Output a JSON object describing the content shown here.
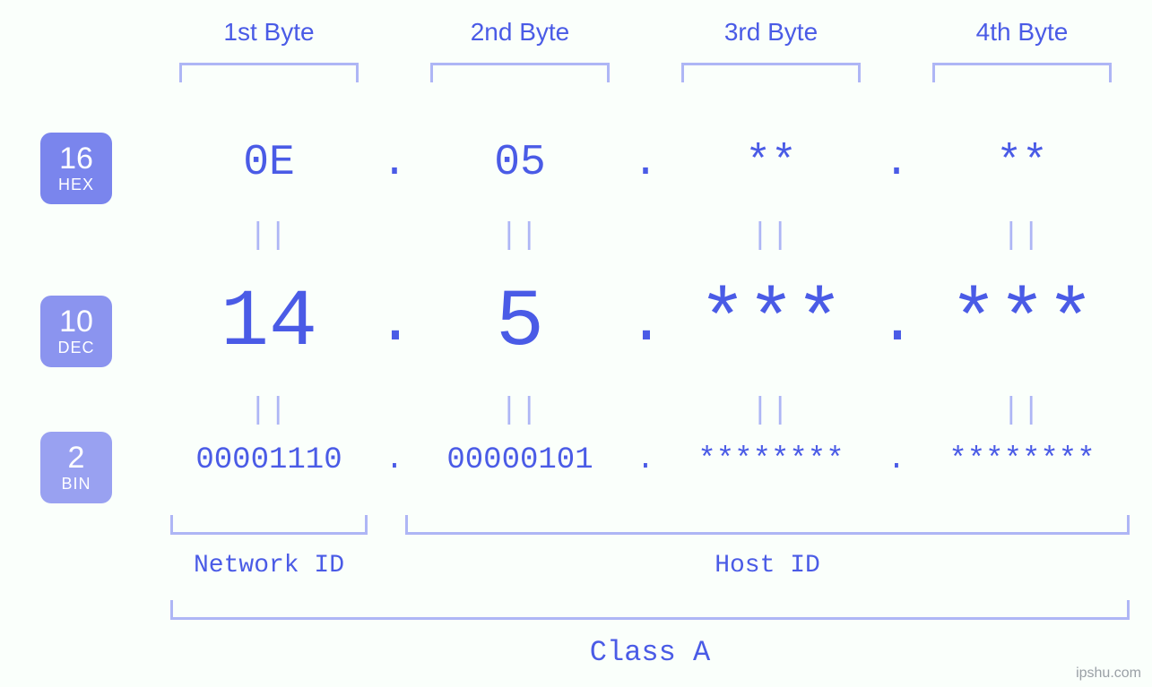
{
  "colors": {
    "background": "#fafffb",
    "primary_text": "#4a5be6",
    "bracket": "#aeb6f5",
    "equals": "#aeb6f5",
    "badge_hex_bg": "#7a85ed",
    "badge_dec_bg": "#8b94ef",
    "badge_bin_bg": "#99a1f1",
    "badge_text": "#ffffff",
    "watermark": "#9aa0a6"
  },
  "typography": {
    "byte_label_fontsize": 28,
    "hex_fontsize": 48,
    "dec_fontsize": 90,
    "bin_fontsize": 34,
    "equals_fontsize": 34,
    "id_label_fontsize": 28,
    "class_label_fontsize": 32,
    "badge_num_fontsize": 34,
    "badge_name_fontsize": 18,
    "font_mono": "Courier New",
    "font_sans": "Arial"
  },
  "byte_headers": [
    "1st Byte",
    "2nd Byte",
    "3rd Byte",
    "4th Byte"
  ],
  "bases": {
    "hex": {
      "num": "16",
      "name": "HEX"
    },
    "dec": {
      "num": "10",
      "name": "DEC"
    },
    "bin": {
      "num": "2",
      "name": "BIN"
    }
  },
  "values": {
    "hex": [
      "0E",
      "05",
      "**",
      "**"
    ],
    "dec": [
      "14",
      "5",
      "***",
      "***"
    ],
    "bin": [
      "00001110",
      "00000101",
      "********",
      "********"
    ]
  },
  "separator": ".",
  "equals_glyph": "||",
  "labels": {
    "network_id": "Network ID",
    "host_id": "Host ID",
    "class": "Class A"
  },
  "watermark": "ipshu.com",
  "structure": {
    "type": "infographic",
    "description": "IPv4 address byte breakdown in hex/dec/bin with network/host/class brackets",
    "network_id_bytes": [
      1
    ],
    "host_id_bytes": [
      2,
      3,
      4
    ],
    "class_bytes": [
      1,
      2,
      3,
      4
    ]
  }
}
